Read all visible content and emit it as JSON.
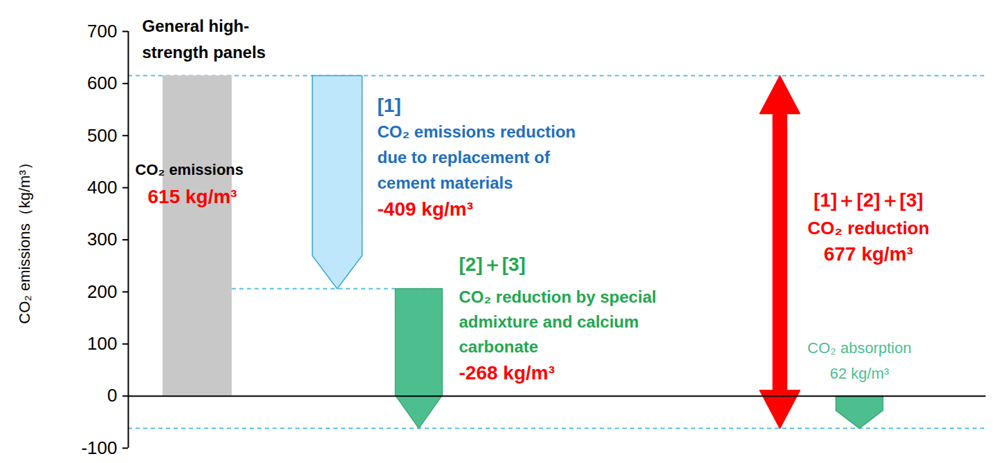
{
  "chart_data": {
    "type": "waterfall",
    "y_label": "CO₂ emissions（kg/m³）",
    "ylim": [
      -100,
      700
    ],
    "yticks": [
      -100,
      0,
      100,
      200,
      300,
      400,
      500,
      600,
      700
    ],
    "tick_labels": "y",
    "grid": false,
    "steps": [
      {
        "type": "bar",
        "heading": [
          "General high-",
          "strength panels"
        ],
        "label": [
          "CO₂ emissions"
        ],
        "value": 615,
        "value_label": "615 kg/m³",
        "color": "#c8c8c8"
      },
      {
        "type": "arrow",
        "tag": "[1]",
        "label": [
          "CO₂ emissions reduction",
          "due to replacement of",
          "cement materials"
        ],
        "value": -409,
        "value_label": "-409 kg/m³",
        "color": "#bfe7fb"
      },
      {
        "type": "arrow",
        "tag": "[2]＋[3]",
        "label": [
          "CO₂ reduction by special",
          "admixture and calcium",
          "carbonate"
        ],
        "value": -268,
        "value_label": "-268 kg/m³",
        "color": "#4dbf8f"
      },
      {
        "type": "double_arrow",
        "tag": "[1]＋[2]＋[3]",
        "label": [
          "CO₂ reduction"
        ],
        "value": 677,
        "value_label": "677 kg/m³",
        "color": "#ff0000"
      },
      {
        "type": "absorption",
        "base": 0,
        "label": [
          "CO₂ absorption"
        ],
        "value": 62,
        "value_label": "62 kg/m³",
        "color": "#4dbf8f"
      }
    ]
  }
}
